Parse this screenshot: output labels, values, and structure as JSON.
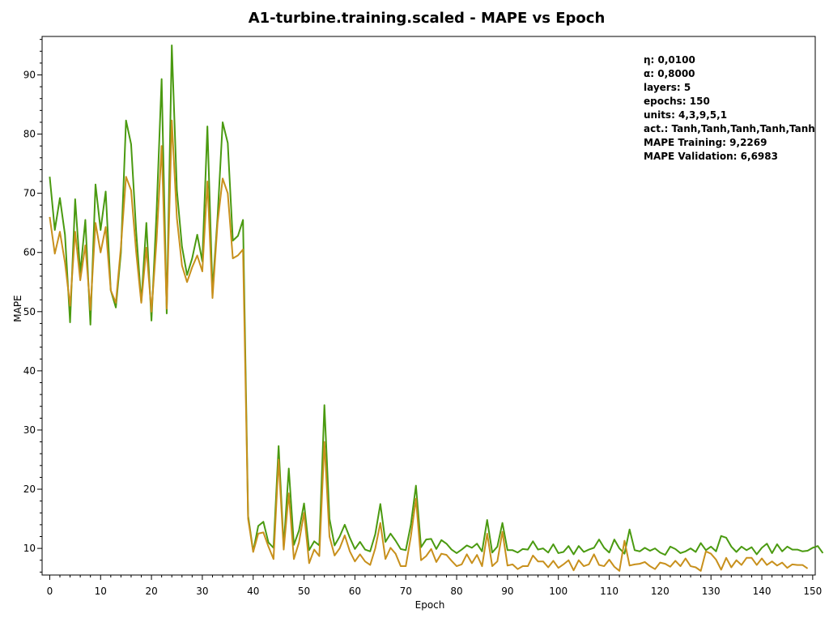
{
  "chart_data": {
    "type": "line",
    "title": "A1-turbine.training.scaled - MAPE vs Epoch",
    "xlabel": "Epoch",
    "ylabel": "MAPE",
    "xlim": [
      -1.5,
      150.5
    ],
    "ylim": [
      5.5,
      96.5
    ],
    "xticks": [
      0,
      10,
      20,
      30,
      40,
      50,
      60,
      70,
      80,
      90,
      100,
      110,
      120,
      130,
      140,
      150
    ],
    "yticks": [
      10,
      20,
      30,
      40,
      50,
      60,
      70,
      80,
      90
    ],
    "grid": false,
    "info_lines": [
      "η: 0,0100",
      "α: 0,8000",
      "layers: 5",
      "epochs: 150",
      "units: 4,3,9,5,1",
      "act.: Tanh,Tanh,Tanh,Tanh,Tanh",
      "MAPE Training: 9,2269",
      "MAPE Validation: 6,6983"
    ],
    "series": [
      {
        "color": "#4a9a10",
        "values": [
          72.8,
          63.8,
          69.2,
          63.0,
          48.2,
          69.0,
          56.5,
          65.5,
          47.8,
          71.5,
          63.8,
          70.3,
          53.6,
          50.7,
          60.0,
          82.3,
          78.3,
          63.5,
          51.6,
          65.0,
          48.5,
          66.8,
          89.3,
          49.7,
          95.0,
          70.5,
          61.0,
          56.2,
          59.0,
          63.0,
          58.5,
          81.3,
          53.5,
          66.0,
          82.0,
          78.5,
          62.0,
          62.8,
          65.5,
          15.5,
          9.5,
          13.8,
          14.5,
          11.0,
          10.1,
          27.3,
          10.3,
          23.5,
          10.6,
          13.0,
          17.6,
          9.7,
          11.2,
          10.5,
          34.2,
          15.0,
          10.5,
          12.0,
          14.0,
          11.8,
          9.9,
          11.1,
          9.8,
          9.5,
          12.4,
          17.5,
          11.1,
          12.5,
          11.3,
          9.9,
          9.7,
          14.0,
          20.6,
          10.2,
          11.5,
          11.6,
          9.9,
          11.4,
          10.8,
          9.8,
          9.2,
          9.8,
          10.5,
          10.1,
          10.8,
          9.5,
          14.8,
          9.3,
          10.3,
          14.3,
          9.7,
          9.7,
          9.3,
          9.9,
          9.8,
          11.2,
          9.8,
          10.0,
          9.3,
          10.7,
          9.2,
          9.4,
          10.4,
          9.0,
          10.4,
          9.4,
          9.8,
          10.1,
          11.5,
          10.1,
          9.3,
          11.5,
          10.0,
          9.1,
          13.2,
          9.7,
          9.5,
          10.1,
          9.6,
          10.0,
          9.3,
          8.9,
          10.3,
          9.9,
          9.2,
          9.5,
          10.0,
          9.4,
          10.9,
          9.7,
          10.3,
          9.5,
          12.1,
          11.8,
          10.3,
          9.4,
          10.3,
          9.7,
          10.2,
          9.0,
          10.1,
          10.8,
          9.2,
          10.7,
          9.5,
          10.3,
          9.8,
          9.8,
          9.5,
          9.6,
          10.1,
          10.4,
          9.2
        ]
      },
      {
        "color": "#c8901c",
        "values": [
          66.0,
          59.8,
          63.5,
          58.3,
          51.0,
          63.5,
          55.3,
          61.2,
          50.3,
          65.0,
          60.0,
          64.3,
          53.6,
          51.5,
          61.0,
          72.8,
          70.5,
          60.0,
          51.5,
          60.8,
          50.0,
          62.0,
          78.0,
          50.5,
          82.3,
          65.8,
          57.8,
          55.0,
          57.5,
          59.5,
          56.8,
          72.0,
          52.3,
          65.0,
          72.5,
          70.0,
          59.0,
          59.5,
          60.5,
          15.0,
          9.4,
          12.5,
          12.7,
          10.3,
          8.2,
          25.0,
          9.8,
          19.3,
          8.2,
          11.0,
          16.0,
          7.5,
          9.8,
          8.7,
          28.0,
          12.0,
          8.8,
          10.0,
          12.2,
          9.5,
          7.8,
          9.0,
          7.8,
          7.2,
          10.0,
          14.3,
          8.2,
          10.1,
          9.1,
          7.0,
          7.0,
          12.0,
          18.4,
          8.0,
          8.7,
          9.9,
          7.7,
          9.1,
          8.9,
          7.9,
          7.0,
          7.3,
          9.0,
          7.5,
          8.9,
          7.0,
          12.5,
          7.0,
          7.8,
          12.8,
          7.1,
          7.3,
          6.5,
          7.0,
          7.0,
          8.8,
          7.8,
          7.8,
          6.8,
          7.9,
          6.7,
          7.3,
          8.0,
          6.3,
          8.0,
          7.0,
          7.3,
          9.0,
          7.2,
          7.0,
          8.1,
          6.9,
          6.2,
          11.3,
          7.1,
          7.3,
          7.4,
          7.7,
          7.0,
          6.5,
          7.6,
          7.4,
          6.9,
          7.9,
          7.0,
          8.3,
          7.0,
          6.8,
          6.2,
          9.5,
          9.1,
          8.1,
          6.4,
          8.4,
          6.8,
          8.0,
          7.2,
          8.4,
          8.4,
          7.2,
          8.3,
          7.2,
          7.8,
          7.1,
          7.6,
          6.7,
          7.3,
          7.2,
          7.2,
          6.6
        ]
      }
    ]
  }
}
